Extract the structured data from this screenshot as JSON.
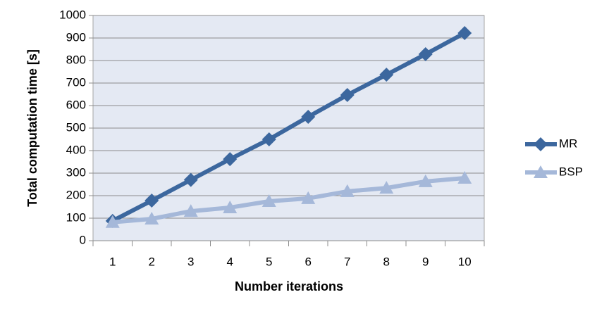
{
  "chart_data": {
    "type": "line",
    "x_label": "Number iterations",
    "y_label": "Total computation time [s]",
    "categories": [
      "1",
      "2",
      "3",
      "4",
      "5",
      "6",
      "7",
      "8",
      "9",
      "10"
    ],
    "series": [
      {
        "name": "MR",
        "color": "#3c679e",
        "marker": "diamond",
        "values": [
          88,
          178,
          270,
          362,
          450,
          550,
          647,
          737,
          828,
          922
        ]
      },
      {
        "name": "BSP",
        "color": "#a5b8d9",
        "marker": "triangle",
        "values": [
          82,
          97,
          131,
          147,
          175,
          188,
          219,
          234,
          263,
          278
        ]
      }
    ],
    "ylim": [
      0,
      1000
    ],
    "yticks": [
      0,
      100,
      200,
      300,
      400,
      500,
      600,
      700,
      800,
      900,
      1000
    ],
    "grid": true,
    "legend": "right"
  }
}
